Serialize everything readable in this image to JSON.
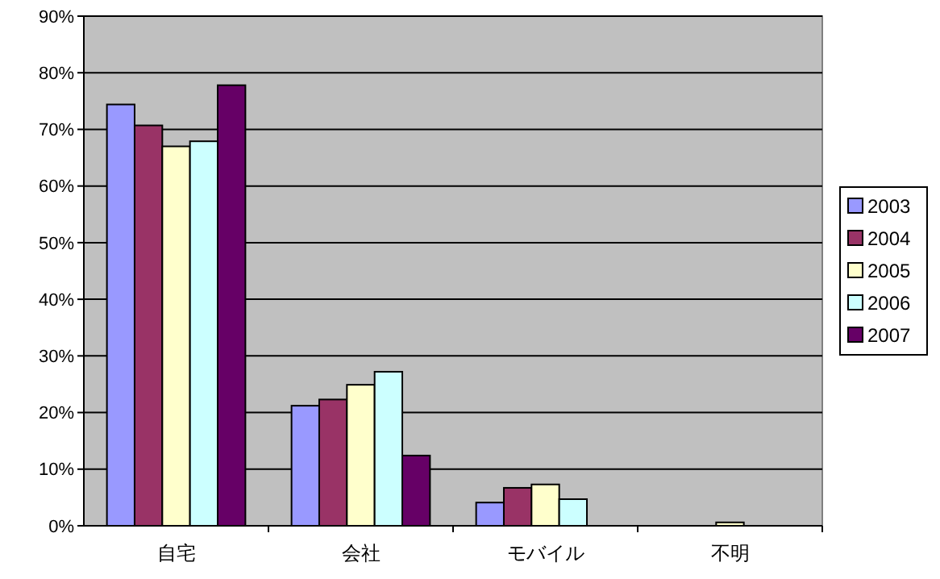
{
  "chart_data": {
    "type": "bar",
    "categories": [
      "自宅",
      "会社",
      "モバイル",
      "不明"
    ],
    "series": [
      {
        "name": "2003",
        "color": "#9999ff",
        "values": [
          74.4,
          21.2,
          4.1,
          0
        ]
      },
      {
        "name": "2004",
        "color": "#993366",
        "values": [
          70.7,
          22.3,
          6.7,
          0
        ]
      },
      {
        "name": "2005",
        "color": "#ffffcc",
        "values": [
          67.0,
          24.9,
          7.3,
          0.6
        ]
      },
      {
        "name": "2006",
        "color": "#ccffff",
        "values": [
          67.9,
          27.2,
          4.7,
          0
        ]
      },
      {
        "name": "2007",
        "color": "#660066",
        "values": [
          77.8,
          12.4,
          0,
          0
        ]
      }
    ],
    "ylim": [
      0,
      90
    ],
    "yticks": [
      {
        "value": 0,
        "label": "0%"
      },
      {
        "value": 10,
        "label": "10%"
      },
      {
        "value": 20,
        "label": "20%"
      },
      {
        "value": 30,
        "label": "30%"
      },
      {
        "value": 40,
        "label": "40%"
      },
      {
        "value": 50,
        "label": "50%"
      },
      {
        "value": 60,
        "label": "60%"
      },
      {
        "value": 70,
        "label": "70%"
      },
      {
        "value": 80,
        "label": "80%"
      },
      {
        "value": 90,
        "label": "90%"
      }
    ],
    "grid": "y",
    "legend": "right"
  }
}
